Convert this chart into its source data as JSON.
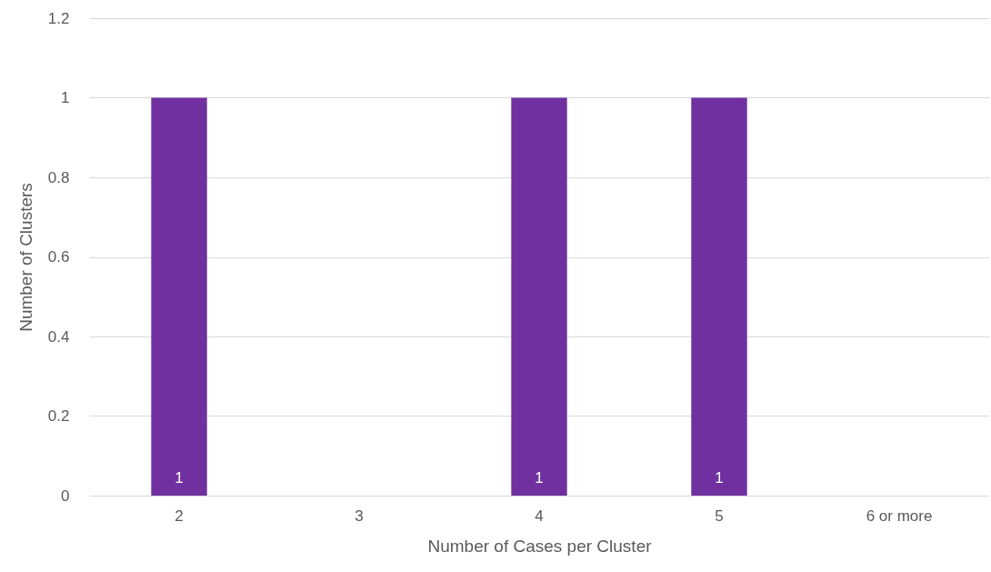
{
  "chart_data": {
    "type": "bar",
    "xlabel": "Number of Cases per Cluster",
    "ylabel": "Number of Clusters",
    "categories": [
      "2",
      "3",
      "4",
      "5",
      "6 or more"
    ],
    "values": [
      1,
      0,
      1,
      1,
      0
    ],
    "value_labels": [
      "1",
      null,
      "1",
      "1",
      null
    ],
    "color": "#7030a0",
    "ylim": [
      0,
      1.2
    ],
    "yticks": [
      0,
      0.2,
      0.4,
      0.6,
      0.8,
      1,
      1.2
    ],
    "grid": "y",
    "legend": false
  }
}
